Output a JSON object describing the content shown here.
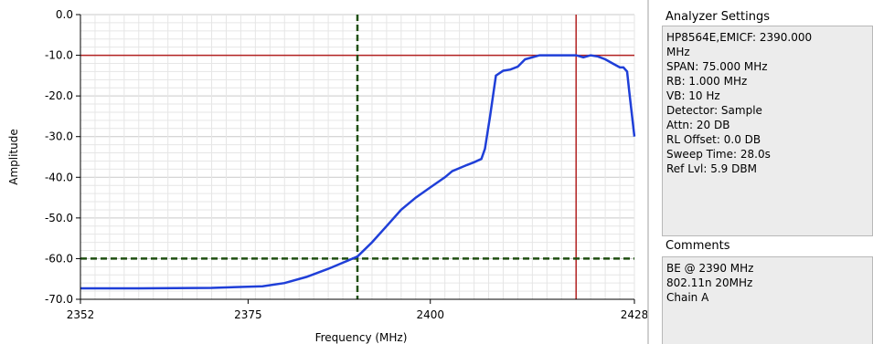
{
  "chart_data": {
    "type": "line",
    "xlabel": "Frequency (MHz)",
    "ylabel": "Amplitude",
    "xlim": [
      2352,
      2428
    ],
    "ylim": [
      -70,
      0
    ],
    "x_ticks": [
      2352,
      2375,
      2400,
      2428
    ],
    "y_ticks": [
      0,
      -10,
      -20,
      -30,
      -40,
      -50,
      -60,
      -70
    ],
    "y_tick_labels": [
      "0.0",
      "-10.0",
      "-20.0",
      "-30.0",
      "-40.0",
      "-50.0",
      "-60.0",
      "-70.0"
    ],
    "grid": true,
    "series": [
      {
        "color": "#1f3fd8",
        "x": [
          2352,
          2360,
          2370,
          2377,
          2380,
          2383,
          2386,
          2388,
          2390,
          2392,
          2394,
          2396,
          2398,
          2400,
          2402,
          2403,
          2405,
          2406,
          2407,
          2407.5,
          2408.2,
          2409,
          2410,
          2411,
          2412,
          2413,
          2415,
          2417,
          2419,
          2420,
          2421,
          2422,
          2423,
          2424,
          2425,
          2426,
          2426.5,
          2427,
          2427.3,
          2428
        ],
        "y": [
          -67.3,
          -67.3,
          -67.2,
          -66.8,
          -66,
          -64.5,
          -62.5,
          -61,
          -59.5,
          -56,
          -52,
          -48,
          -45,
          -42.5,
          -40,
          -38.5,
          -37,
          -36.3,
          -35.5,
          -33,
          -25,
          -15,
          -13.8,
          -13.5,
          -12.8,
          -11,
          -10,
          -10,
          -10,
          -10,
          -10.5,
          -10,
          -10.3,
          -11,
          -12,
          -13,
          -13,
          -14,
          -19,
          -30
        ]
      }
    ],
    "markers": {
      "red_vertical_x": 2420,
      "red_horizontal_y": -10,
      "green_dashed_vertical_x": 2390,
      "green_dashed_horizontal_y": -60
    }
  },
  "settings_panel": {
    "title": "Analyzer Settings",
    "lines": [
      "HP8564E,EMICF: 2390.000",
      "MHz",
      "SPAN: 75.000 MHz",
      "RB: 1.000 MHz",
      "VB: 10 Hz",
      "Detector: Sample",
      "Attn: 20 DB",
      "RL Offset: 0.0 DB",
      "Sweep Time: 28.0s",
      "Ref Lvl: 5.9 DBM"
    ]
  },
  "comments_panel": {
    "title": "Comments",
    "lines": [
      "BE @ 2390 MHz",
      "802.11n 20MHz",
      "Chain A"
    ]
  }
}
